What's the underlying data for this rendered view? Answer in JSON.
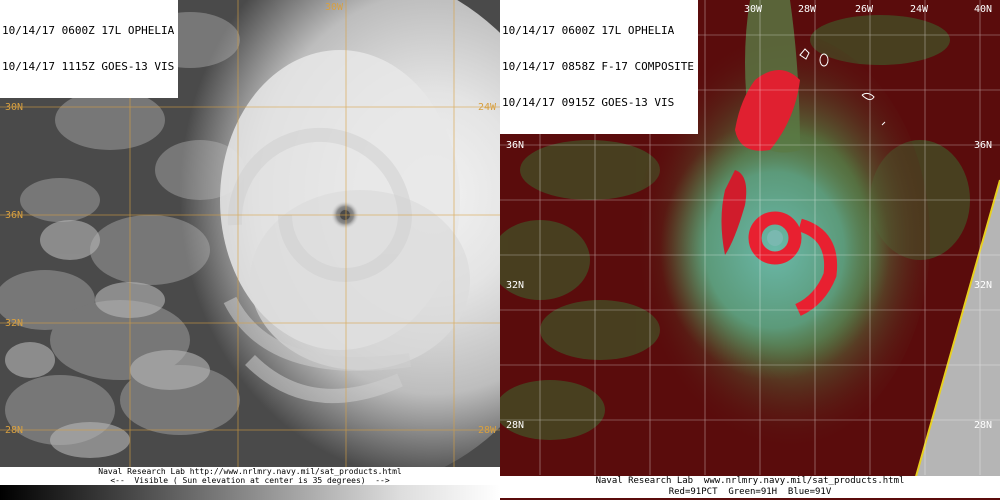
{
  "left_panel": {
    "header": [
      "10/14/17 0600Z 17L OPHELIA",
      "10/14/17 1115Z GOES-13 VIS"
    ],
    "footer": [
      "Naval Research Lab http://www.nrlmry.navy.mil/sat_products.html",
      "<--  Visible ( Sun elevation at center is 35 degrees)  -->"
    ],
    "lat_labels": [
      "36N",
      "32N",
      "30N",
      "28N"
    ],
    "lon_labels": [
      "30W",
      "24W",
      "28W"
    ]
  },
  "right_panel": {
    "header": [
      "10/14/17 0600Z 17L OPHELIA",
      "10/14/17 0858Z F-17 COMPOSITE",
      "10/14/17 0915Z GOES-13 VIS"
    ],
    "footer": [
      "Naval Research Lab  www.nrlmry.navy.mil/sat_products.html",
      "Red=91PCT  Green=91H  Blue=91V"
    ],
    "lon_labels": [
      "30W",
      "28W",
      "26W",
      "24W"
    ],
    "lat_labels_left": [
      "36N",
      "32N",
      "28N"
    ],
    "lat_labels_right": [
      "40N",
      "36N",
      "32N",
      "28N"
    ]
  }
}
